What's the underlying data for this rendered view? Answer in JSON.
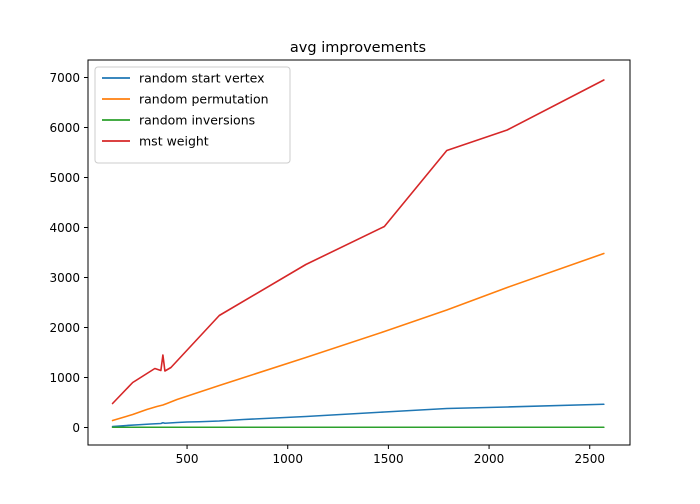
{
  "chart_data": {
    "type": "line",
    "title": "avg improvements",
    "xlabel": "",
    "ylabel": "",
    "xlim": [
      8,
      2700
    ],
    "ylim": [
      -350,
      7350
    ],
    "xticks": [
      500,
      1000,
      1500,
      2000,
      2500
    ],
    "yticks": [
      0,
      1000,
      2000,
      3000,
      4000,
      5000,
      6000,
      7000
    ],
    "grid": false,
    "legend_position": "top-left",
    "series": [
      {
        "name": "random start vertex",
        "color": "#1f77b4",
        "x": [
          130,
          200,
          260,
          320,
          370,
          380,
          390,
          410,
          450,
          500,
          560,
          660,
          780,
          1090,
          1480,
          1790,
          2090,
          2570
        ],
        "y": [
          20,
          40,
          55,
          70,
          80,
          95,
          85,
          90,
          100,
          110,
          115,
          130,
          160,
          220,
          310,
          380,
          410,
          465
        ]
      },
      {
        "name": "random permutation",
        "color": "#ff7f0e",
        "x": [
          130,
          230,
          300,
          350,
          380,
          400,
          450,
          660,
          1090,
          1480,
          1790,
          2090,
          2570
        ],
        "y": [
          140,
          260,
          360,
          420,
          450,
          480,
          560,
          840,
          1400,
          1920,
          2350,
          2800,
          3480
        ]
      },
      {
        "name": "random inversions",
        "color": "#2ca02c",
        "x": [
          130,
          2570
        ],
        "y": [
          5,
          5
        ]
      },
      {
        "name": "mst weight",
        "color": "#d62728",
        "x": [
          130,
          230,
          340,
          370,
          380,
          390,
          420,
          660,
          1090,
          1480,
          1790,
          2090,
          2570
        ],
        "y": [
          480,
          900,
          1180,
          1140,
          1450,
          1130,
          1200,
          2240,
          3260,
          4020,
          5540,
          5950,
          6950
        ]
      }
    ]
  }
}
